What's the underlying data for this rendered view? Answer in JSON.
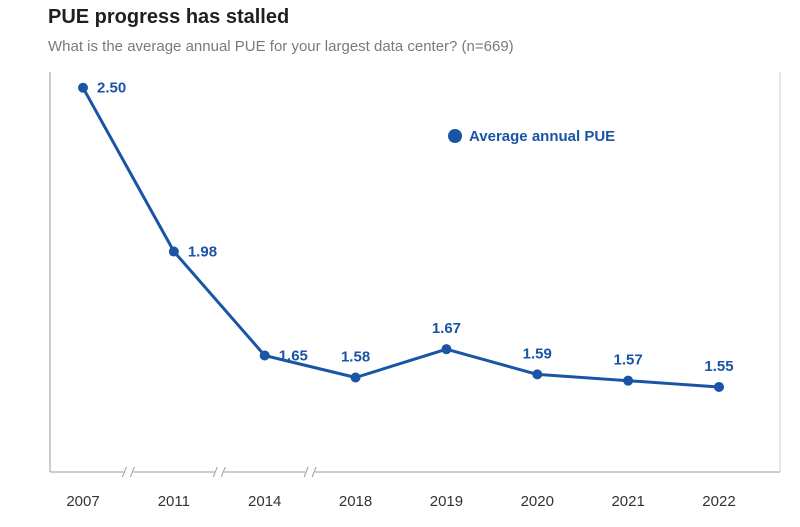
{
  "chart_data": {
    "type": "line",
    "title": "PUE progress has stalled",
    "subtitle": "What is the average annual PUE for your largest data center? (n=669)",
    "categories": [
      "2007",
      "2011",
      "2014",
      "2018",
      "2019",
      "2020",
      "2021",
      "2022"
    ],
    "series": [
      {
        "name": "Average annual PUE",
        "values": [
          2.5,
          1.98,
          1.65,
          1.58,
          1.67,
          1.59,
          1.57,
          1.55
        ],
        "labels": [
          "2.50",
          "1.98",
          "1.65",
          "1.58",
          "1.67",
          "1.59",
          "1.57",
          "1.55"
        ]
      }
    ],
    "ylim": [
      1.28,
      2.55
    ],
    "axis_breaks_after": [
      "2007",
      "2011",
      "2014"
    ],
    "legend": "top-right",
    "grid": false,
    "color": "#1a54a6"
  }
}
